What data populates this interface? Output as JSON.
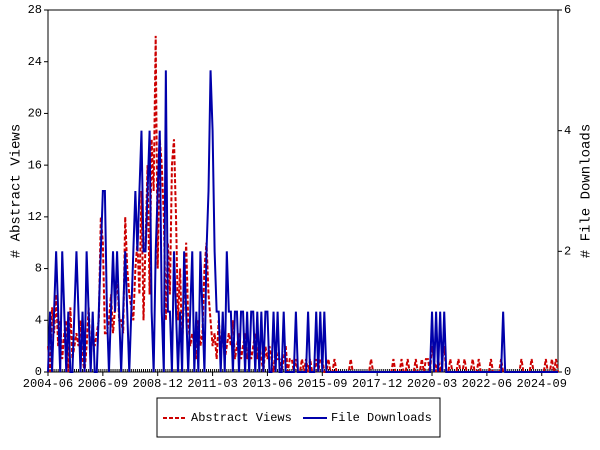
{
  "chart_data": {
    "type": "line",
    "ylabel": "# Abstract Views",
    "y2label": "# File Downloads",
    "x": [
      "2004-06",
      "2004-07",
      "2004-08",
      "2004-09",
      "2004-10",
      "2004-11",
      "2004-12",
      "2005-01",
      "2005-02",
      "2005-03",
      "2005-04",
      "2005-05",
      "2005-06",
      "2005-07",
      "2005-08",
      "2005-09",
      "2005-10",
      "2005-11",
      "2005-12",
      "2006-01",
      "2006-02",
      "2006-03",
      "2006-04",
      "2006-05",
      "2006-06",
      "2006-07",
      "2006-08",
      "2006-09",
      "2006-10",
      "2006-11",
      "2006-12",
      "2007-01",
      "2007-02",
      "2007-03",
      "2007-04",
      "2007-05",
      "2007-06",
      "2007-07",
      "2007-08",
      "2007-09",
      "2007-10",
      "2007-11",
      "2007-12",
      "2008-01",
      "2008-02",
      "2008-03",
      "2008-04",
      "2008-05",
      "2008-06",
      "2008-07",
      "2008-08",
      "2008-09",
      "2008-10",
      "2008-11",
      "2008-12",
      "2009-01",
      "2009-02",
      "2009-03",
      "2009-04",
      "2009-05",
      "2009-06",
      "2009-07",
      "2009-08",
      "2009-09",
      "2009-10",
      "2009-11",
      "2009-12",
      "2010-01",
      "2010-02",
      "2010-03",
      "2010-04",
      "2010-05",
      "2010-06",
      "2010-07",
      "2010-08",
      "2010-09",
      "2010-10",
      "2010-11",
      "2010-12",
      "2011-01",
      "2011-02",
      "2011-03",
      "2011-04",
      "2011-05",
      "2011-06",
      "2011-07",
      "2011-08",
      "2011-09",
      "2011-10",
      "2011-11",
      "2011-12",
      "2012-01",
      "2012-02",
      "2012-03",
      "2012-04",
      "2012-05",
      "2012-06",
      "2012-07",
      "2012-08",
      "2012-09",
      "2012-10",
      "2012-11",
      "2012-12",
      "2013-01",
      "2013-02",
      "2013-03",
      "2013-04",
      "2013-05",
      "2013-06",
      "2013-07",
      "2013-08",
      "2013-09",
      "2013-10",
      "2013-11",
      "2013-12",
      "2014-01",
      "2014-02",
      "2014-03",
      "2014-04",
      "2014-05",
      "2014-06",
      "2014-07",
      "2014-08",
      "2014-09",
      "2014-10",
      "2014-11",
      "2014-12",
      "2015-01",
      "2015-02",
      "2015-03",
      "2015-04",
      "2015-05",
      "2015-06",
      "2015-07",
      "2015-08",
      "2015-09",
      "2015-10",
      "2015-11",
      "2015-12",
      "2016-01",
      "2016-02",
      "2016-03",
      "2016-04",
      "2016-05",
      "2016-06",
      "2016-07",
      "2016-08",
      "2016-09",
      "2016-10",
      "2016-11",
      "2016-12",
      "2017-01",
      "2017-02",
      "2017-03",
      "2017-04",
      "2017-05",
      "2017-06",
      "2017-07",
      "2017-08",
      "2017-09",
      "2017-10",
      "2017-11",
      "2017-12",
      "2018-01",
      "2018-02",
      "2018-03",
      "2018-04",
      "2018-05",
      "2018-06",
      "2018-07",
      "2018-08",
      "2018-09",
      "2018-10",
      "2018-11",
      "2018-12",
      "2019-01",
      "2019-02",
      "2019-03",
      "2019-04",
      "2019-05",
      "2019-06",
      "2019-07",
      "2019-08",
      "2019-09",
      "2019-10",
      "2019-11",
      "2019-12",
      "2020-01",
      "2020-02",
      "2020-03",
      "2020-04",
      "2020-05",
      "2020-06",
      "2020-07",
      "2020-08",
      "2020-09",
      "2020-10",
      "2020-11",
      "2020-12",
      "2021-01",
      "2021-02",
      "2021-03",
      "2021-04",
      "2021-05",
      "2021-06",
      "2021-07",
      "2021-08",
      "2021-09",
      "2021-10",
      "2021-11",
      "2021-12",
      "2022-01",
      "2022-02",
      "2022-03",
      "2022-04",
      "2022-05",
      "2022-06",
      "2022-07",
      "2022-08",
      "2022-09",
      "2022-10",
      "2022-11",
      "2022-12",
      "2023-01",
      "2023-02",
      "2023-03",
      "2023-04",
      "2023-05",
      "2023-06",
      "2023-07",
      "2023-08",
      "2023-09",
      "2023-10",
      "2023-11",
      "2023-12",
      "2024-01",
      "2024-02",
      "2024-03",
      "2024-04",
      "2024-05",
      "2024-06",
      "2024-07",
      "2024-08",
      "2024-09",
      "2024-10",
      "2024-11",
      "2024-12",
      "2025-01",
      "2025-02",
      "2025-03",
      "2025-04",
      "2025-05"
    ],
    "xticks": [
      "2004-06",
      "2006-09",
      "2008-12",
      "2011-03",
      "2013-06",
      "2015-09",
      "2017-12",
      "2020-03",
      "2022-06",
      "2024-09"
    ],
    "ylim": [
      0,
      28
    ],
    "yticks": [
      0,
      4,
      8,
      12,
      16,
      20,
      24,
      28
    ],
    "y2lim": [
      0,
      6
    ],
    "y2ticks": [
      0,
      2,
      4,
      6
    ],
    "legend": "bottom",
    "series": [
      {
        "name": "Abstract Views",
        "color": "#cc0000",
        "dash": true,
        "values": [
          2,
          0,
          5,
          3,
          6,
          2,
          4,
          1,
          3,
          4,
          0,
          5,
          1,
          2,
          3,
          2,
          4,
          1,
          0,
          2,
          5,
          1,
          3,
          2,
          3,
          4,
          12,
          10,
          3,
          3,
          4,
          6,
          3,
          5,
          8,
          4,
          4,
          3,
          12,
          8,
          6,
          5,
          4,
          8,
          10,
          6,
          14,
          4,
          10,
          16,
          6,
          18,
          14,
          26,
          8,
          18,
          16,
          12,
          4,
          10,
          6,
          16,
          18,
          12,
          4,
          8,
          2,
          6,
          10,
          4,
          2,
          3,
          2,
          1,
          4,
          2,
          3,
          8,
          10,
          6,
          4,
          2,
          3,
          1,
          4,
          2,
          3,
          1,
          2,
          3,
          2,
          4,
          1,
          2,
          3,
          1,
          2,
          3,
          1,
          2,
          1,
          2,
          3,
          1,
          2,
          1,
          0,
          2,
          1,
          2,
          1,
          0,
          2,
          1,
          1,
          0,
          1,
          2,
          0,
          1,
          1,
          0,
          1,
          0,
          0,
          1,
          0,
          1,
          0,
          1,
          0,
          0,
          1,
          0,
          1,
          1,
          0,
          0,
          1,
          0,
          0,
          1,
          0,
          0,
          0,
          0,
          0,
          0,
          0,
          1,
          0,
          0,
          0,
          0,
          0,
          0,
          0,
          0,
          0,
          1,
          0,
          0,
          0,
          0,
          0,
          0,
          0,
          0,
          0,
          0,
          1,
          0,
          0,
          0,
          1,
          0,
          0,
          1,
          0,
          0,
          0,
          1,
          0,
          0,
          1,
          0,
          1,
          1,
          0,
          2,
          1,
          0,
          1,
          0,
          1,
          2,
          0,
          0,
          1,
          0,
          0,
          0,
          1,
          0,
          0,
          1,
          0,
          0,
          0,
          1,
          0,
          0,
          1,
          0,
          0,
          0,
          0,
          0,
          1,
          0,
          0,
          0,
          0,
          1,
          0,
          0,
          0,
          0,
          0,
          0,
          0,
          0,
          0,
          1,
          0,
          0,
          0,
          0,
          1,
          0,
          0,
          0,
          0,
          0,
          0,
          1,
          0,
          0,
          1,
          0,
          1,
          0
        ]
      },
      {
        "name": "File Downloads",
        "color": "#0000aa",
        "axis": "y2",
        "values": [
          0,
          1,
          0,
          1,
          2,
          1,
          0,
          2,
          1,
          0,
          1,
          0,
          0,
          1,
          2,
          1,
          0,
          1,
          0,
          2,
          1,
          0,
          1,
          0,
          0,
          1,
          2,
          3,
          3,
          1,
          0,
          1,
          2,
          1,
          2,
          1,
          0,
          1,
          2,
          1,
          0,
          1,
          2,
          3,
          2,
          3,
          4,
          2,
          2,
          3,
          4,
          1,
          0,
          2,
          3,
          4,
          1,
          0,
          5,
          1,
          1,
          0,
          2,
          1,
          0,
          1,
          0,
          2,
          1,
          0,
          1,
          2,
          0,
          1,
          0,
          2,
          1,
          0,
          2,
          3,
          5,
          4,
          2,
          1,
          1,
          0,
          1,
          0,
          2,
          1,
          1,
          0,
          1,
          1,
          0,
          1,
          1,
          0,
          1,
          0,
          1,
          1,
          0,
          1,
          0,
          1,
          0,
          1,
          1,
          0,
          0,
          1,
          0,
          1,
          0,
          0,
          1,
          0,
          0,
          0,
          0,
          0,
          1,
          0,
          0,
          0,
          0,
          0,
          1,
          0,
          0,
          0,
          1,
          0,
          1,
          0,
          1,
          0,
          0,
          0,
          0,
          0,
          0,
          0,
          0,
          0,
          0,
          0,
          0,
          0,
          0,
          0,
          0,
          0,
          0,
          0,
          0,
          0,
          0,
          0,
          0,
          0,
          0,
          0,
          0,
          0,
          0,
          0,
          0,
          0,
          0,
          0,
          0,
          0,
          0,
          0,
          0,
          0,
          0,
          0,
          0,
          0,
          0,
          0,
          0,
          0,
          0,
          0,
          0,
          1,
          0,
          1,
          0,
          1,
          0,
          1,
          0,
          0,
          0,
          0,
          0,
          0,
          0,
          0,
          0,
          0,
          0,
          0,
          0,
          0,
          0,
          0,
          0,
          0,
          0,
          0,
          0,
          0,
          0,
          0,
          0,
          0,
          0,
          0,
          1,
          0,
          0,
          0,
          0,
          0,
          0,
          0,
          0,
          0,
          0,
          0,
          0,
          0,
          0,
          0,
          0,
          0,
          0,
          0,
          0,
          0,
          0,
          0,
          0,
          0,
          0,
          0
        ]
      }
    ]
  }
}
